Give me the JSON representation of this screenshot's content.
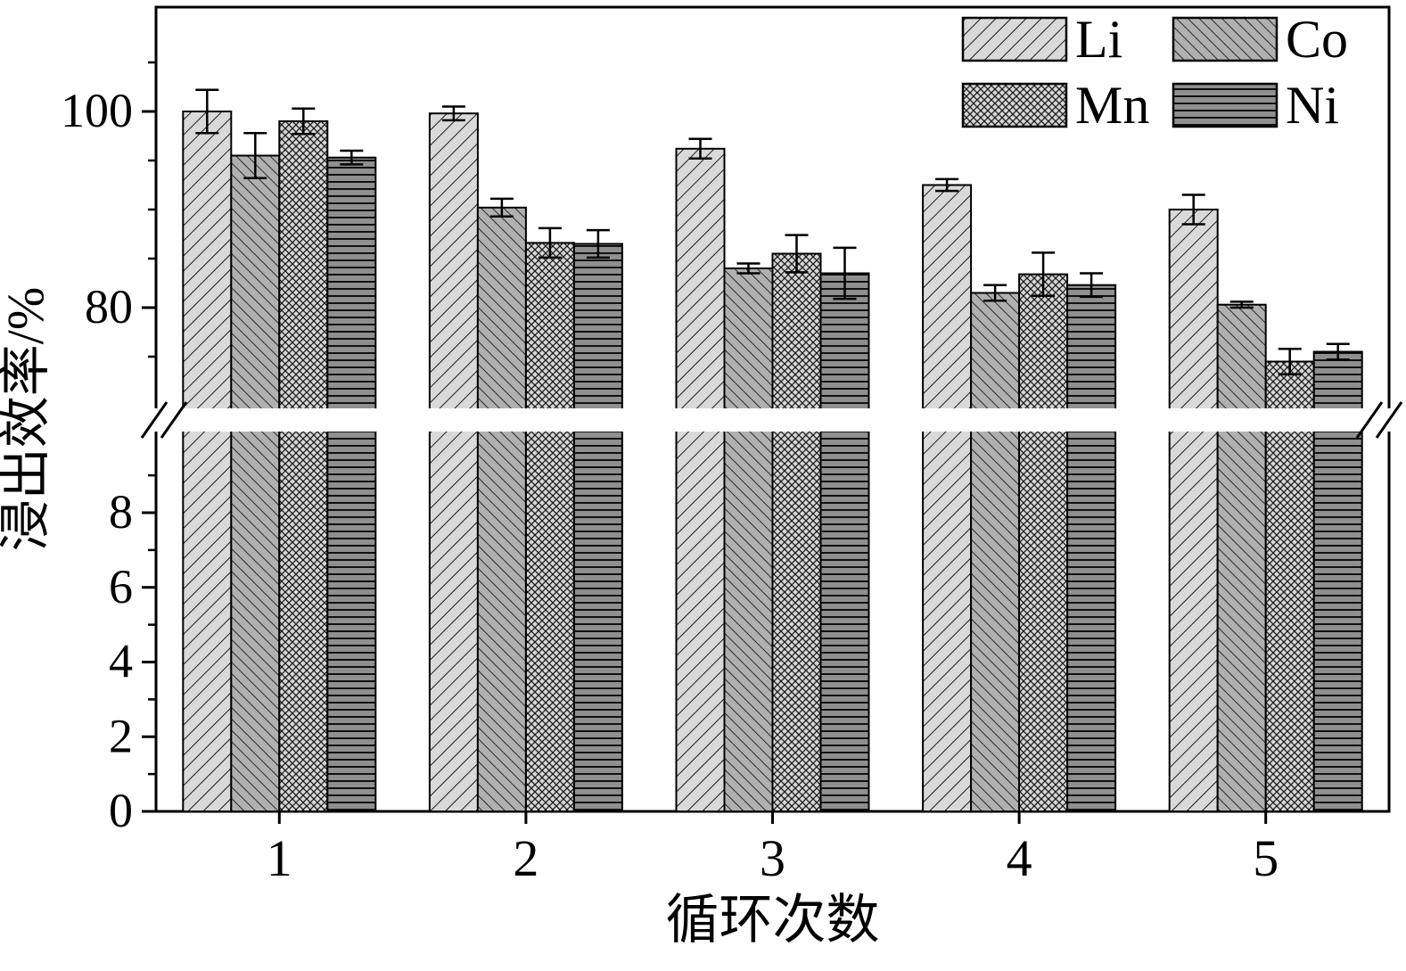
{
  "chart_data": {
    "type": "bar",
    "title": "",
    "xlabel": "循环次数",
    "ylabel": "浸出效率/%",
    "categories": [
      "1",
      "2",
      "3",
      "4",
      "5"
    ],
    "series": [
      {
        "name": "Li",
        "pattern": "diagonal-up",
        "fill": "#d9d9d9",
        "values": [
          100.0,
          99.8,
          96.2,
          92.5,
          90.0
        ],
        "errors": [
          2.2,
          0.7,
          1.0,
          0.6,
          1.5
        ]
      },
      {
        "name": "Co",
        "pattern": "diagonal-down",
        "fill": "#b0b0b0",
        "values": [
          95.5,
          90.2,
          84.0,
          81.5,
          80.3
        ],
        "errors": [
          2.3,
          0.9,
          0.5,
          0.8,
          0.3
        ]
      },
      {
        "name": "Mn",
        "pattern": "crosshatch",
        "fill": "#d6d6d6",
        "values": [
          99.0,
          86.6,
          85.5,
          83.4,
          74.5
        ],
        "errors": [
          1.3,
          1.5,
          1.9,
          2.2,
          1.3
        ]
      },
      {
        "name": "Ni",
        "pattern": "horizontal",
        "fill": "#8f8f8f",
        "values": [
          95.3,
          86.5,
          83.5,
          82.3,
          75.5
        ],
        "errors": [
          0.7,
          1.4,
          2.6,
          1.2,
          0.8
        ]
      }
    ],
    "y_axis": {
      "broken": true,
      "unit": "%",
      "upper": {
        "major_ticks": [
          80,
          100
        ],
        "minor_ticks": [
          75,
          85,
          90,
          95,
          105
        ],
        "range": [
          69.5,
          110.5
        ]
      },
      "lower": {
        "major_ticks": [
          0,
          2,
          4,
          6,
          8
        ],
        "minor_ticks": [
          1,
          3,
          5,
          7,
          9
        ],
        "range": [
          0,
          10.2
        ]
      }
    },
    "legend": {
      "position": "top-right",
      "columns": 2,
      "entries": [
        "Li",
        "Co",
        "Mn",
        "Ni"
      ]
    },
    "grid": false
  },
  "colors": {
    "background": "#ffffff",
    "axis": "#000000",
    "bar_border": "#000000",
    "hatch_line": "#1a1a1a"
  }
}
